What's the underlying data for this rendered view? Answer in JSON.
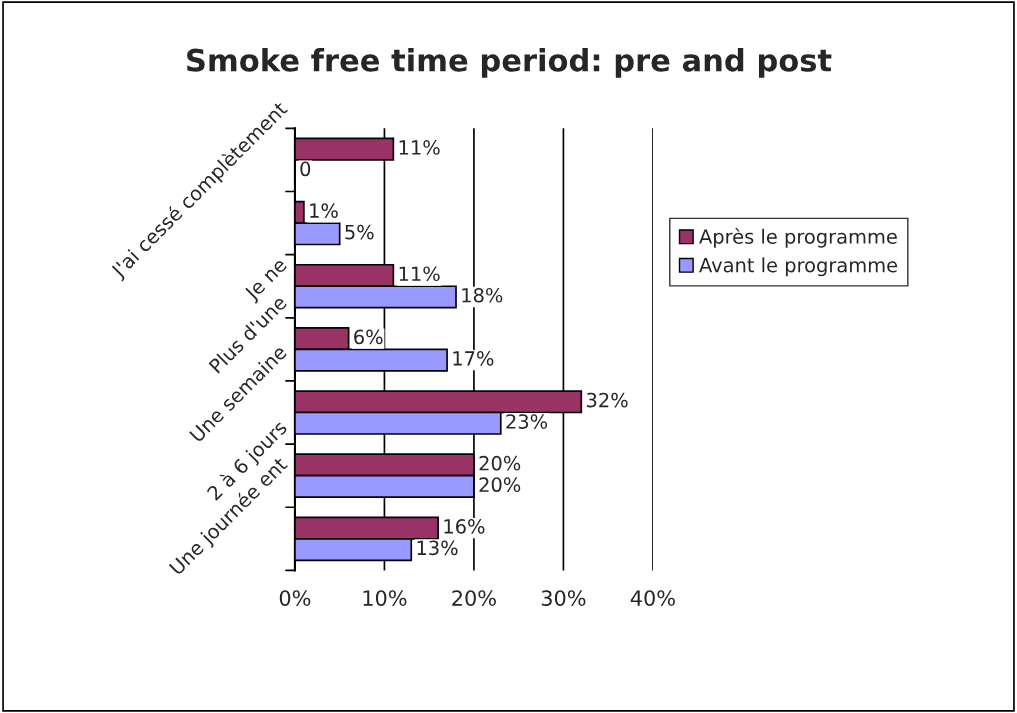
{
  "chart_data": {
    "type": "bar",
    "orientation": "horizontal",
    "title": "Smoke free time period: pre and post",
    "categories": [
      null,
      "J'ai cessé complètement",
      "Je ne",
      "Plus d'une",
      "Une semaine",
      "2 à 6 jours",
      "Une journée ent"
    ],
    "series": [
      {
        "name": "Après le programme",
        "color": "#993366",
        "values": [
          11,
          1,
          11,
          6,
          32,
          20,
          16
        ],
        "value_labels": [
          "11%",
          "1%",
          "11%",
          "6%",
          "32%",
          "20%",
          "16%"
        ]
      },
      {
        "name": "Avant le programme",
        "color": "#9999ff",
        "values": [
          0,
          5,
          18,
          17,
          23,
          20,
          13
        ],
        "value_labels": [
          "0",
          "5%",
          "18%",
          "17%",
          "23%",
          "20%",
          "13%"
        ]
      }
    ],
    "xlim": [
      0,
      40
    ],
    "xticks": [
      {
        "value": 0,
        "label": "0%"
      },
      {
        "value": 10,
        "label": "10%"
      },
      {
        "value": 20,
        "label": "20%"
      },
      {
        "value": 30,
        "label": "30%"
      },
      {
        "value": 40,
        "label": "40%"
      }
    ],
    "grid": "x",
    "legend": "right"
  }
}
